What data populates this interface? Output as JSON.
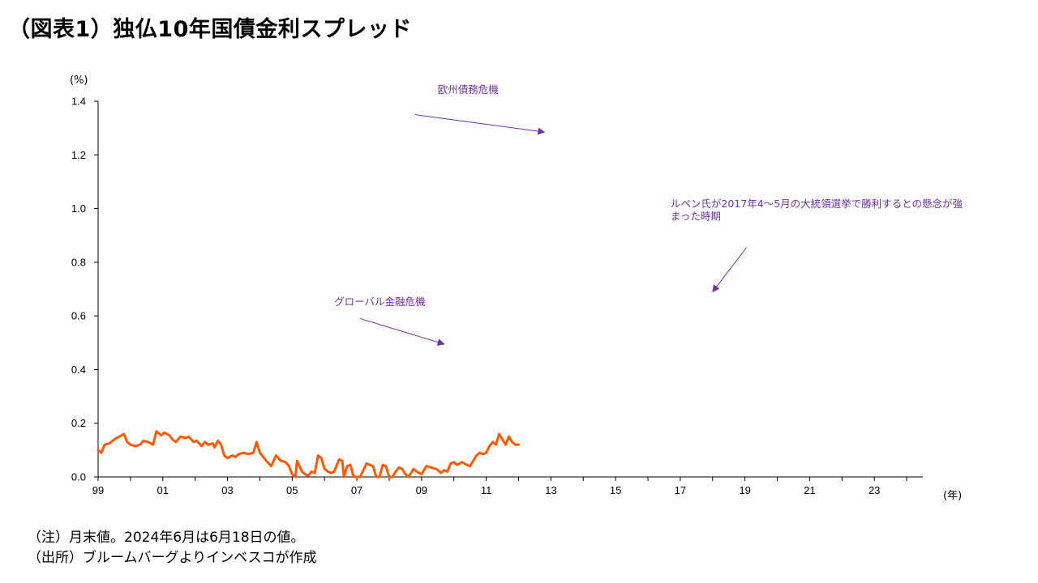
{
  "title": "（図表1）独仏10年国債金利スプレッド",
  "notes": [
    "（注）月末値。2024年6月は6月18日の値。",
    "（出所）ブルームバーグよりインベスコが作成"
  ],
  "chart_data": {
    "type": "line",
    "title": "（図表1）独仏10年国債金利スプレッド",
    "ylabel": "(%)",
    "xlabel": "(年)",
    "ylim": [
      0,
      1.4
    ],
    "yticks": [
      "0.0",
      "0.2",
      "0.4",
      "0.6",
      "0.8",
      "1.0",
      "1.2",
      "1.4"
    ],
    "xlim": [
      1999.0,
      2024.5
    ],
    "xticks": [
      "99",
      "01",
      "03",
      "05",
      "07",
      "09",
      "11",
      "13",
      "15",
      "17",
      "19",
      "21",
      "23"
    ],
    "grid": false,
    "color": "#ff5a00",
    "series": [
      {
        "points": [
          [
            1999.0,
            0.1
          ],
          [
            1999.1,
            0.09
          ],
          [
            1999.2,
            0.12
          ],
          [
            1999.35,
            0.125
          ],
          [
            1999.5,
            0.14
          ],
          [
            1999.65,
            0.15
          ],
          [
            1999.8,
            0.16
          ],
          [
            1999.9,
            0.13
          ],
          [
            2000.0,
            0.12
          ],
          [
            2000.15,
            0.115
          ],
          [
            2000.3,
            0.12
          ],
          [
            2000.4,
            0.135
          ],
          [
            2000.55,
            0.13
          ],
          [
            2000.7,
            0.12
          ],
          [
            2000.8,
            0.17
          ],
          [
            2000.95,
            0.155
          ],
          [
            2001.05,
            0.165
          ],
          [
            2001.2,
            0.155
          ],
          [
            2001.3,
            0.14
          ],
          [
            2001.4,
            0.13
          ],
          [
            2001.55,
            0.15
          ],
          [
            2001.7,
            0.145
          ],
          [
            2001.8,
            0.15
          ],
          [
            2001.95,
            0.13
          ],
          [
            2002.05,
            0.135
          ],
          [
            2002.2,
            0.115
          ],
          [
            2002.3,
            0.13
          ],
          [
            2002.4,
            0.12
          ],
          [
            2002.55,
            0.125
          ],
          [
            2002.6,
            0.11
          ],
          [
            2002.7,
            0.135
          ],
          [
            2002.8,
            0.12
          ],
          [
            2002.9,
            0.08
          ],
          [
            2003.0,
            0.07
          ],
          [
            2003.15,
            0.08
          ],
          [
            2003.25,
            0.075
          ],
          [
            2003.35,
            0.085
          ],
          [
            2003.5,
            0.09
          ],
          [
            2003.65,
            0.085
          ],
          [
            2003.8,
            0.09
          ],
          [
            2003.9,
            0.13
          ],
          [
            2004.0,
            0.09
          ],
          [
            2004.2,
            0.06
          ],
          [
            2004.35,
            0.04
          ],
          [
            2004.5,
            0.08
          ],
          [
            2004.65,
            0.06
          ],
          [
            2004.8,
            0.055
          ],
          [
            2004.9,
            0.04
          ],
          [
            2005.0,
            0.01
          ],
          [
            2005.1,
            0.0
          ],
          [
            2005.15,
            0.06
          ],
          [
            2005.3,
            0.02
          ],
          [
            2005.4,
            0.01
          ],
          [
            2005.5,
            0.005
          ],
          [
            2005.6,
            0.02
          ],
          [
            2005.7,
            0.015
          ],
          [
            2005.8,
            0.08
          ],
          [
            2005.9,
            0.07
          ],
          [
            2006.0,
            0.03
          ],
          [
            2006.1,
            0.02
          ],
          [
            2006.2,
            0.015
          ],
          [
            2006.3,
            0.02
          ],
          [
            2006.45,
            0.065
          ],
          [
            2006.55,
            0.06
          ],
          [
            2006.6,
            0.0
          ],
          [
            2006.7,
            0.04
          ],
          [
            2006.8,
            0.045
          ],
          [
            2006.9,
            0.0
          ],
          [
            2007.1,
            0.0
          ],
          [
            2007.3,
            0.05
          ],
          [
            2007.5,
            0.04
          ],
          [
            2007.6,
            0.0
          ],
          [
            2007.7,
            0.0
          ],
          [
            2007.8,
            0.045
          ],
          [
            2007.9,
            0.04
          ],
          [
            2008.0,
            0.0
          ],
          [
            2008.1,
            0.0
          ],
          [
            2008.2,
            0.02
          ],
          [
            2008.3,
            0.035
          ],
          [
            2008.4,
            0.03
          ],
          [
            2008.5,
            0.01
          ],
          [
            2008.6,
            0.0
          ],
          [
            2008.75,
            0.03
          ],
          [
            2008.85,
            0.02
          ],
          [
            2009.0,
            0.01
          ],
          [
            2009.15,
            0.04
          ],
          [
            2009.3,
            0.035
          ],
          [
            2009.45,
            0.03
          ],
          [
            2009.6,
            0.015
          ],
          [
            2009.7,
            0.025
          ],
          [
            2009.8,
            0.02
          ],
          [
            2009.9,
            0.05
          ],
          [
            2010.0,
            0.055
          ],
          [
            2010.1,
            0.045
          ],
          [
            2010.25,
            0.055
          ],
          [
            2010.4,
            0.045
          ],
          [
            2010.5,
            0.04
          ],
          [
            2010.6,
            0.06
          ],
          [
            2010.7,
            0.08
          ],
          [
            2010.8,
            0.09
          ],
          [
            2010.9,
            0.085
          ],
          [
            2011.0,
            0.09
          ],
          [
            2011.1,
            0.115
          ],
          [
            2011.2,
            0.13
          ],
          [
            2011.3,
            0.12
          ],
          [
            2011.4,
            0.16
          ],
          [
            2011.5,
            0.14
          ],
          [
            2011.6,
            0.12
          ],
          [
            2011.7,
            0.15
          ],
          [
            2011.8,
            0.13
          ],
          [
            2011.9,
            0.12
          ],
          [
            2012.0,
            0.12
          ]
        ]
      }
    ],
    "annotations": [
      {
        "text": "欧州債務危機",
        "x": 2009.5,
        "y": 1.43,
        "arrow_from": [
          2008.8,
          1.35
        ],
        "arrow_to": [
          2012.8,
          1.285
        ]
      },
      {
        "text": "グローバル金融危機",
        "x": 2006.3,
        "y": 0.64,
        "arrow_from": [
          2007.1,
          0.59
        ],
        "arrow_to": [
          2009.7,
          0.495
        ]
      },
      {
        "text": "ルペン氏が2017年4～5月の大統領選挙で勝利するとの懸念が強",
        "x": 2016.7,
        "y": 1.005
      },
      {
        "text": "まった時期",
        "x": 2016.7,
        "y": 0.958,
        "arrow_from": [
          2019.05,
          0.855
        ],
        "arrow_to": [
          2018.0,
          0.69
        ]
      }
    ]
  }
}
